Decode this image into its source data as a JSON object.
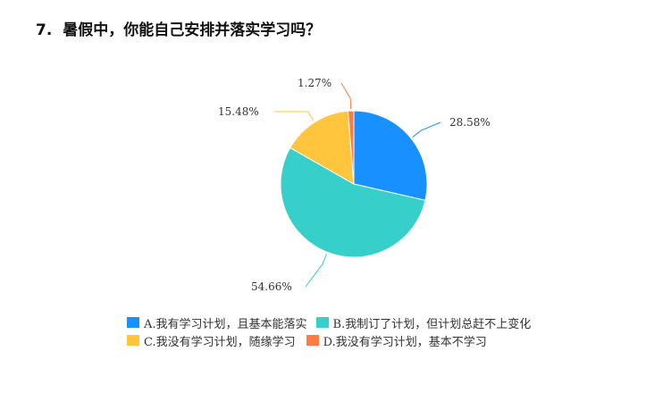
{
  "question": {
    "number": "7.",
    "text": "暑假中，你能自己安排并落实学习吗？"
  },
  "chart_data": {
    "type": "pie",
    "title": "",
    "slices": [
      {
        "name": "A.我有学习计划，且基本能落实",
        "value": 28.58,
        "label": "28.58%",
        "color": "#1890ff"
      },
      {
        "name": "B.我制订了计划，但计划总赶不上变化",
        "value": 54.66,
        "label": "54.66%",
        "color": "#36cfc9"
      },
      {
        "name": "C.我没有学习计划，随缘学习",
        "value": 15.48,
        "label": "15.48%",
        "color": "#ffc53d"
      },
      {
        "name": "D.我没有学习计划，基本不学习",
        "value": 1.27,
        "label": "1.27%",
        "color": "#ff7a45"
      }
    ],
    "start_angle_deg": 90,
    "direction": "clockwise",
    "legend_position": "bottom"
  }
}
